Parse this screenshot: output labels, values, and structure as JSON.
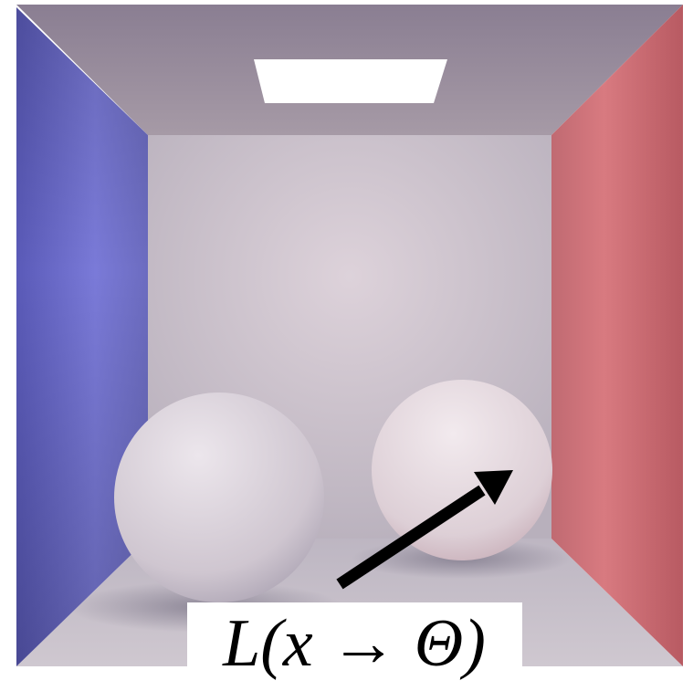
{
  "label": "L(x → Θ)"
}
